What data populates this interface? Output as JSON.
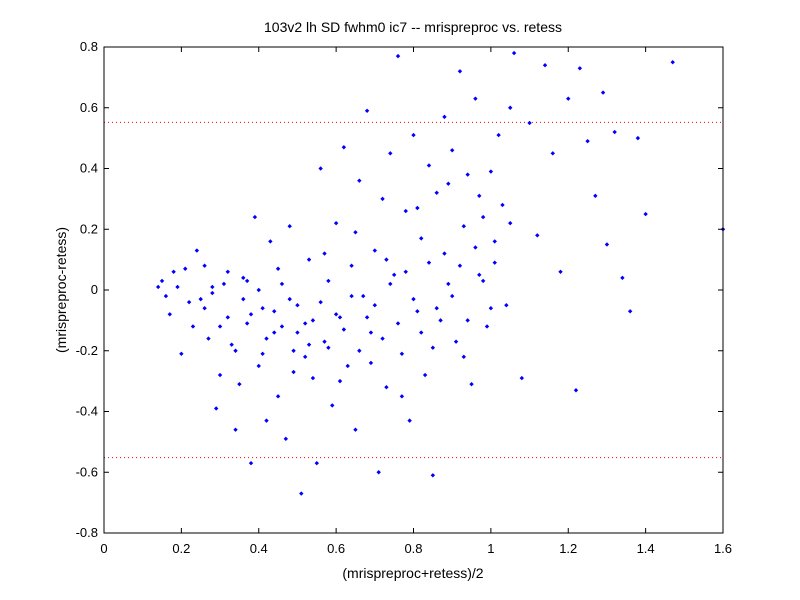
{
  "chart_data": {
    "type": "scatter",
    "title": "103v2 lh SD fwhm0 ic7 -- mrispreproc vs. retess",
    "xlabel": "(mrispreproc+retess)/2",
    "ylabel": "(mrispreproc-retess)",
    "xlim": [
      0,
      1.6
    ],
    "ylim": [
      -0.8,
      0.8
    ],
    "xticks": [
      "0",
      "0.2",
      "0.4",
      "0.6",
      "0.8",
      "1",
      "1.2",
      "1.4",
      "1.6"
    ],
    "yticks": [
      "-0.8",
      "-0.6",
      "-0.4",
      "-0.2",
      "0",
      "0.2",
      "0.4",
      "0.6",
      "0.8"
    ],
    "grid": false,
    "reference_lines": [
      0.552,
      -0.552
    ],
    "colors": {
      "points": "#0000ff",
      "reference": "#ff0000",
      "axes": "#000000"
    },
    "points": [
      [
        0.14,
        0.01
      ],
      [
        0.15,
        0.03
      ],
      [
        0.16,
        -0.02
      ],
      [
        0.17,
        -0.08
      ],
      [
        0.18,
        0.06
      ],
      [
        0.19,
        0.01
      ],
      [
        0.2,
        -0.21
      ],
      [
        0.21,
        0.07
      ],
      [
        0.22,
        -0.04
      ],
      [
        0.23,
        -0.12
      ],
      [
        0.24,
        0.13
      ],
      [
        0.25,
        -0.03
      ],
      [
        0.26,
        0.08
      ],
      [
        0.27,
        -0.16
      ],
      [
        0.28,
        0.01
      ],
      [
        0.29,
        -0.39
      ],
      [
        0.3,
        -0.28
      ],
      [
        0.31,
        0.02
      ],
      [
        0.32,
        -0.09
      ],
      [
        0.33,
        -0.18
      ],
      [
        0.34,
        -0.46
      ],
      [
        0.35,
        -0.31
      ],
      [
        0.36,
        0.04
      ],
      [
        0.37,
        -0.11
      ],
      [
        0.38,
        -0.57
      ],
      [
        0.39,
        0.24
      ],
      [
        0.4,
        -0.25
      ],
      [
        0.41,
        -0.06
      ],
      [
        0.42,
        -0.43
      ],
      [
        0.43,
        0.16
      ],
      [
        0.44,
        -0.14
      ],
      [
        0.45,
        -0.35
      ],
      [
        0.46,
        0.02
      ],
      [
        0.47,
        -0.49
      ],
      [
        0.48,
        0.21
      ],
      [
        0.49,
        -0.2
      ],
      [
        0.5,
        -0.05
      ],
      [
        0.51,
        -0.67
      ],
      [
        0.52,
        -0.11
      ],
      [
        0.53,
        0.1
      ],
      [
        0.54,
        -0.29
      ],
      [
        0.55,
        -0.57
      ],
      [
        0.56,
        0.4
      ],
      [
        0.57,
        -0.17
      ],
      [
        0.58,
        0.03
      ],
      [
        0.59,
        -0.38
      ],
      [
        0.6,
        0.22
      ],
      [
        0.61,
        -0.09
      ],
      [
        0.62,
        0.47
      ],
      [
        0.63,
        -0.25
      ],
      [
        0.64,
        0.08
      ],
      [
        0.65,
        -0.46
      ],
      [
        0.66,
        0.36
      ],
      [
        0.67,
        -0.02
      ],
      [
        0.68,
        0.59
      ],
      [
        0.69,
        -0.14
      ],
      [
        0.7,
        0.13
      ],
      [
        0.71,
        -0.6
      ],
      [
        0.72,
        0.3
      ],
      [
        0.73,
        -0.32
      ],
      [
        0.74,
        0.45
      ],
      [
        0.75,
        0.05
      ],
      [
        0.76,
        0.77
      ],
      [
        0.77,
        -0.21
      ],
      [
        0.78,
        0.26
      ],
      [
        0.79,
        -0.43
      ],
      [
        0.8,
        0.51
      ],
      [
        0.81,
        -0.07
      ],
      [
        0.82,
        0.17
      ],
      [
        0.83,
        -0.28
      ],
      [
        0.84,
        0.41
      ],
      [
        0.85,
        -0.61
      ],
      [
        0.86,
        0.32
      ],
      [
        0.87,
        -0.1
      ],
      [
        0.88,
        0.57
      ],
      [
        0.89,
        0.02
      ],
      [
        0.9,
        0.46
      ],
      [
        0.91,
        -0.17
      ],
      [
        0.92,
        0.72
      ],
      [
        0.93,
        0.21
      ],
      [
        0.94,
        0.38
      ],
      [
        0.95,
        -0.31
      ],
      [
        0.96,
        0.63
      ],
      [
        0.97,
        0.05
      ],
      [
        0.98,
        0.24
      ],
      [
        0.99,
        -0.12
      ],
      [
        1.0,
        0.39
      ],
      [
        1.01,
        0.16
      ],
      [
        1.02,
        0.51
      ],
      [
        1.03,
        0.28
      ],
      [
        1.04,
        -0.05
      ],
      [
        1.05,
        0.6
      ],
      [
        1.06,
        0.78
      ],
      [
        1.08,
        -0.29
      ],
      [
        1.1,
        0.55
      ],
      [
        1.12,
        0.18
      ],
      [
        1.14,
        0.74
      ],
      [
        1.16,
        0.45
      ],
      [
        1.18,
        0.06
      ],
      [
        1.2,
        0.63
      ],
      [
        1.22,
        -0.33
      ],
      [
        1.23,
        0.73
      ],
      [
        1.25,
        0.49
      ],
      [
        1.27,
        0.31
      ],
      [
        1.29,
        0.65
      ],
      [
        1.3,
        0.15
      ],
      [
        1.32,
        0.52
      ],
      [
        1.34,
        0.04
      ],
      [
        1.36,
        -0.07
      ],
      [
        1.38,
        0.5
      ],
      [
        1.4,
        0.25
      ],
      [
        1.47,
        0.75
      ],
      [
        1.6,
        0.2
      ],
      [
        0.26,
        -0.06
      ],
      [
        0.28,
        -0.01
      ],
      [
        0.3,
        -0.12
      ],
      [
        0.32,
        0.06
      ],
      [
        0.34,
        -0.2
      ],
      [
        0.36,
        -0.03
      ],
      [
        0.38,
        -0.08
      ],
      [
        0.4,
        0.0
      ],
      [
        0.42,
        -0.16
      ],
      [
        0.44,
        -0.07
      ],
      [
        0.46,
        -0.12
      ],
      [
        0.48,
        -0.03
      ],
      [
        0.5,
        -0.14
      ],
      [
        0.52,
        -0.22
      ],
      [
        0.54,
        -0.1
      ],
      [
        0.56,
        -0.04
      ],
      [
        0.58,
        -0.19
      ],
      [
        0.6,
        -0.08
      ],
      [
        0.62,
        -0.13
      ],
      [
        0.64,
        -0.02
      ],
      [
        0.66,
        -0.2
      ],
      [
        0.68,
        -0.09
      ],
      [
        0.7,
        -0.05
      ],
      [
        0.72,
        -0.16
      ],
      [
        0.74,
        0.02
      ],
      [
        0.76,
        -0.11
      ],
      [
        0.78,
        0.06
      ],
      [
        0.8,
        -0.03
      ],
      [
        0.82,
        -0.14
      ],
      [
        0.84,
        0.09
      ],
      [
        0.86,
        -0.06
      ],
      [
        0.88,
        0.12
      ],
      [
        0.9,
        -0.02
      ],
      [
        0.92,
        0.08
      ],
      [
        0.94,
        -0.1
      ],
      [
        0.96,
        0.14
      ],
      [
        0.98,
        0.03
      ],
      [
        1.0,
        -0.06
      ],
      [
        0.37,
        0.03
      ],
      [
        0.41,
        -0.21
      ],
      [
        0.45,
        0.07
      ],
      [
        0.49,
        -0.27
      ],
      [
        0.53,
        -0.18
      ],
      [
        0.57,
        0.12
      ],
      [
        0.61,
        -0.3
      ],
      [
        0.65,
        0.19
      ],
      [
        0.69,
        -0.24
      ],
      [
        0.73,
        0.1
      ],
      [
        0.77,
        -0.35
      ],
      [
        0.81,
        0.27
      ],
      [
        0.85,
        -0.19
      ],
      [
        0.89,
        0.35
      ],
      [
        0.93,
        -0.22
      ],
      [
        0.97,
        0.31
      ],
      [
        1.01,
        0.09
      ],
      [
        1.05,
        0.22
      ]
    ]
  }
}
